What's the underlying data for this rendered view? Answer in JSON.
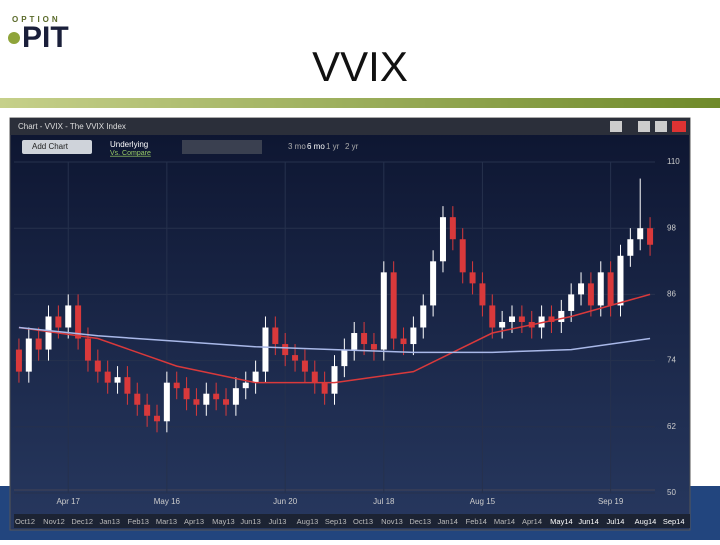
{
  "logo": {
    "small": "OPTION",
    "big": "PIT"
  },
  "header": {
    "title": "VVIX"
  },
  "window": {
    "title": "Chart - VVIX - The VVIX Index",
    "add_button": "Add Chart",
    "underlying": "Underlying",
    "compare": "Vs. Compare",
    "ranges": [
      "3 mo",
      "6 mo",
      "1 yr",
      "2 yr"
    ]
  },
  "navigator": {
    "labels": [
      "Oct12",
      "Nov12",
      "Dec12",
      "Jan13",
      "Feb13",
      "Mar13",
      "Apr13",
      "May13",
      "Jun13",
      "Jul13",
      "Aug13",
      "Sep13",
      "Oct13",
      "Nov13",
      "Dec13",
      "Jan14",
      "Feb14",
      "Mar14",
      "Apr14",
      "May14",
      "Jun14",
      "Jul14",
      "Aug14",
      "Sep14"
    ]
  },
  "chart_data": {
    "type": "candlestick",
    "categories": [
      null,
      null,
      null,
      null,
      null,
      "Apr 17",
      null,
      null,
      null,
      null,
      null,
      null,
      null,
      null,
      null,
      "May 16",
      null,
      null,
      null,
      null,
      null,
      null,
      null,
      null,
      null,
      null,
      null,
      "Jun 20",
      null,
      null,
      null,
      null,
      null,
      null,
      null,
      null,
      null,
      "Jul 18",
      null,
      null,
      null,
      null,
      null,
      null,
      null,
      null,
      null,
      "Aug 15",
      null,
      null,
      null,
      null,
      null,
      null,
      null,
      null,
      null,
      null,
      null,
      null,
      "Sep 19",
      null,
      null,
      null,
      null
    ],
    "open": [
      76,
      72,
      78,
      76,
      82,
      80,
      84,
      78,
      74,
      72,
      70,
      71,
      68,
      66,
      64,
      63,
      70,
      69,
      67,
      66,
      68,
      67,
      66,
      69,
      70,
      72,
      80,
      77,
      75,
      74,
      72,
      70,
      68,
      73,
      76,
      79,
      77,
      76,
      90,
      78,
      77,
      80,
      84,
      92,
      100,
      96,
      90,
      88,
      84,
      80,
      81,
      82,
      81,
      80,
      82,
      81,
      83,
      86,
      88,
      84,
      90,
      84,
      93,
      96,
      98
    ],
    "high": [
      78,
      80,
      80,
      84,
      84,
      86,
      86,
      80,
      76,
      74,
      73,
      73,
      70,
      68,
      66,
      72,
      72,
      71,
      69,
      70,
      70,
      69,
      71,
      72,
      74,
      82,
      82,
      79,
      77,
      76,
      74,
      72,
      75,
      78,
      81,
      81,
      79,
      92,
      92,
      80,
      82,
      86,
      94,
      102,
      102,
      98,
      92,
      90,
      86,
      83,
      84,
      84,
      83,
      84,
      84,
      85,
      88,
      90,
      90,
      92,
      92,
      95,
      98,
      107,
      100
    ],
    "low": [
      70,
      70,
      74,
      74,
      78,
      78,
      76,
      72,
      70,
      68,
      68,
      66,
      64,
      62,
      61,
      61,
      67,
      65,
      64,
      64,
      65,
      64,
      64,
      67,
      68,
      70,
      75,
      73,
      72,
      70,
      68,
      66,
      66,
      71,
      74,
      75,
      74,
      74,
      76,
      75,
      75,
      78,
      82,
      90,
      94,
      88,
      86,
      82,
      78,
      78,
      79,
      79,
      78,
      78,
      79,
      79,
      81,
      84,
      82,
      82,
      82,
      82,
      91,
      94,
      93
    ],
    "close": [
      72,
      78,
      76,
      82,
      80,
      84,
      78,
      74,
      72,
      70,
      71,
      68,
      66,
      64,
      63,
      70,
      69,
      67,
      66,
      68,
      67,
      66,
      69,
      70,
      72,
      80,
      77,
      75,
      74,
      72,
      70,
      68,
      73,
      76,
      79,
      77,
      76,
      90,
      78,
      77,
      80,
      84,
      92,
      100,
      96,
      90,
      88,
      84,
      80,
      81,
      82,
      81,
      80,
      82,
      81,
      83,
      86,
      88,
      84,
      90,
      84,
      93,
      96,
      98,
      95
    ],
    "up_color": "#ffffff",
    "down_color": "#d9393b",
    "series": [
      {
        "color": "#d9393b",
        "x": [
          0,
          8,
          16,
          24,
          32,
          40,
          48,
          56,
          64
        ],
        "values": [
          80,
          78,
          73,
          70,
          70,
          72,
          79,
          82,
          86
        ]
      },
      {
        "color": "#a9b8e8",
        "x": [
          0,
          8,
          16,
          24,
          32,
          40,
          48,
          56,
          64
        ],
        "values": [
          80,
          78.5,
          77.5,
          76.5,
          76,
          75.5,
          75.5,
          76,
          78
        ]
      }
    ],
    "ylim": [
      50,
      110
    ],
    "yticks": [
      50,
      62,
      74,
      86,
      98,
      110
    ],
    "grid": true
  }
}
